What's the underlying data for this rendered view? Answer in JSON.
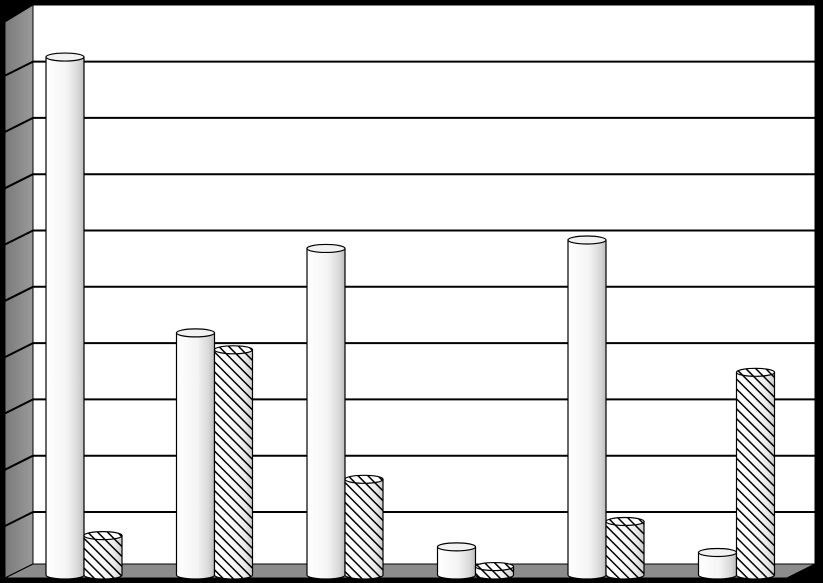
{
  "chart_data": {
    "type": "bar",
    "style": "3d-cylinder",
    "categories": [
      "",
      "",
      "",
      "",
      "",
      ""
    ],
    "series": [
      {
        "pattern": "plain-white",
        "values": [
          9.2,
          4.3,
          5.8,
          0.5,
          5.95,
          0.4
        ]
      },
      {
        "pattern": "diagonal-hatch",
        "values": [
          0.7,
          4.0,
          1.7,
          0.15,
          0.95,
          3.6
        ]
      }
    ],
    "ylim": [
      0,
      10
    ],
    "grid": true,
    "legend": "none",
    "colors": {
      "background": "#000000",
      "plot_area": "#ffffff",
      "side_wall": "#8a8a8a",
      "floor": "#7a7a7a",
      "gridline": "#000000",
      "bar_fill": "#ffffff",
      "hatch": "#000000"
    }
  }
}
